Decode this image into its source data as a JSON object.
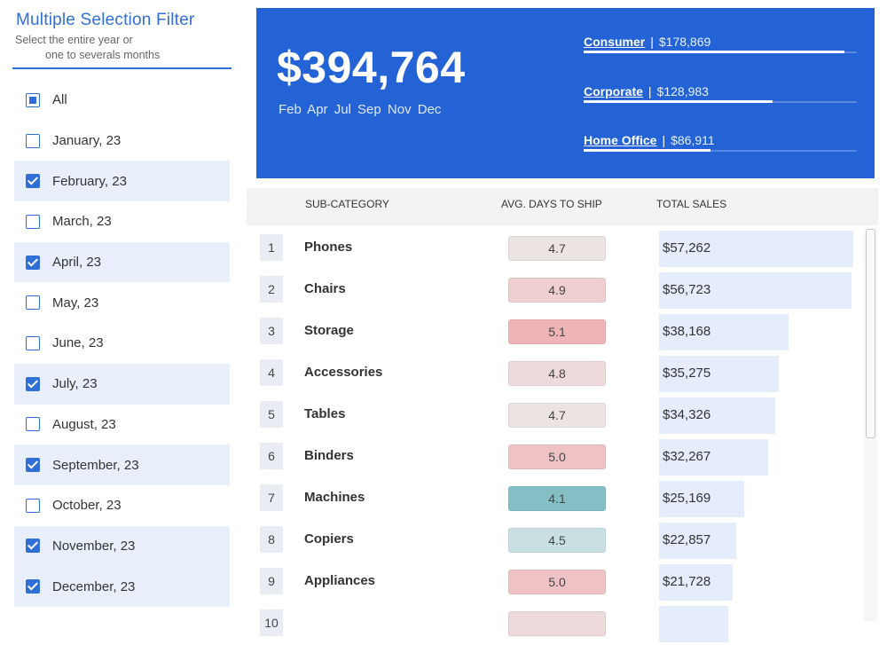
{
  "filter": {
    "title": "Multiple Selection Filter",
    "subtitle_line1": "Select the entire year or",
    "subtitle_line2": "one to severals months",
    "items": [
      {
        "label": "All",
        "state": "partial"
      },
      {
        "label": "January, 23",
        "state": "unchecked"
      },
      {
        "label": "February, 23",
        "state": "checked"
      },
      {
        "label": "March, 23",
        "state": "unchecked"
      },
      {
        "label": "April, 23",
        "state": "checked"
      },
      {
        "label": "May, 23",
        "state": "unchecked"
      },
      {
        "label": "June, 23",
        "state": "unchecked"
      },
      {
        "label": "July, 23",
        "state": "checked"
      },
      {
        "label": "August, 23",
        "state": "unchecked"
      },
      {
        "label": "September, 23",
        "state": "checked"
      },
      {
        "label": "October, 23",
        "state": "unchecked"
      },
      {
        "label": "November, 23",
        "state": "checked"
      },
      {
        "label": "December, 23",
        "state": "checked"
      }
    ]
  },
  "kpi": {
    "total": "$394,764",
    "months": "Feb Apr Jul Sep Nov Dec",
    "segments": [
      {
        "name": "Consumer",
        "value": "$178,869",
        "share": 0.955
      },
      {
        "name": "Corporate",
        "value": "$128,983",
        "share": 0.69
      },
      {
        "name": "Home Office",
        "value": "$86,911",
        "share": 0.465
      }
    ]
  },
  "table": {
    "headers": {
      "sub_category": "SUB-CATEGORY",
      "days": "AVG. DAYS TO SHIP",
      "sales": "TOTAL SALES"
    },
    "rows": [
      {
        "rank": "1",
        "name": "Phones",
        "days": "4.7",
        "days_color": "#ece3e3",
        "sales": "$57,262",
        "sales_value": 57262
      },
      {
        "rank": "2",
        "name": "Chairs",
        "days": "4.9",
        "days_color": "#f0cfd1",
        "sales": "$56,723",
        "sales_value": 56723
      },
      {
        "rank": "3",
        "name": "Storage",
        "days": "5.1",
        "days_color": "#efb4b7",
        "sales": "$38,168",
        "sales_value": 38168
      },
      {
        "rank": "4",
        "name": "Accessories",
        "days": "4.8",
        "days_color": "#eed9db",
        "sales": "$35,275",
        "sales_value": 35275
      },
      {
        "rank": "5",
        "name": "Tables",
        "days": "4.7",
        "days_color": "#ece3e3",
        "sales": "$34,326",
        "sales_value": 34326
      },
      {
        "rank": "6",
        "name": "Binders",
        "days": "5.0",
        "days_color": "#efc2c5",
        "sales": "$32,267",
        "sales_value": 32267
      },
      {
        "rank": "7",
        "name": "Machines",
        "days": "4.1",
        "days_color": "#84bfc5",
        "sales": "$25,169",
        "sales_value": 25169
      },
      {
        "rank": "8",
        "name": "Copiers",
        "days": "4.5",
        "days_color": "#c8e0e2",
        "sales": "$22,857",
        "sales_value": 22857
      },
      {
        "rank": "9",
        "name": "Appliances",
        "days": "5.0",
        "days_color": "#efc2c5",
        "sales": "$21,728",
        "sales_value": 21728
      },
      {
        "rank": "10",
        "name": "",
        "days": "",
        "days_color": "#eed9db",
        "sales": "",
        "sales_value": 20500
      }
    ]
  }
}
